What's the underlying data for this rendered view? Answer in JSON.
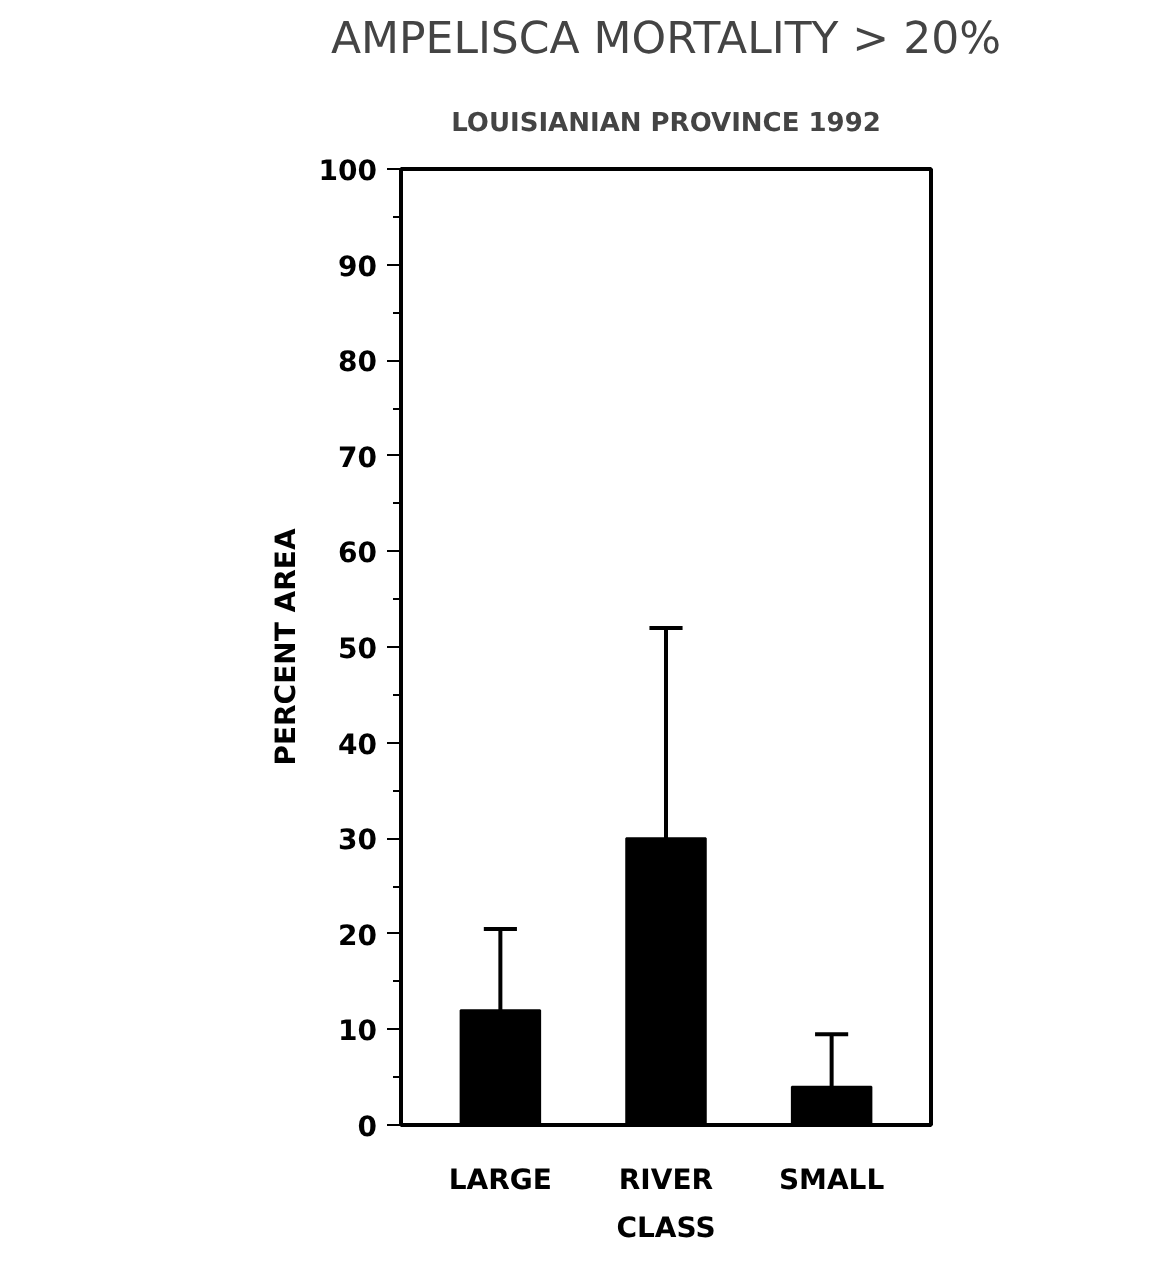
{
  "chart_data": {
    "type": "bar",
    "title": "AMPELISCA MORTALITY > 20%",
    "subtitle": "LOUISIANIAN PROVINCE 1992",
    "xlabel": "CLASS",
    "ylabel": "PERCENT AREA",
    "categories": [
      "LARGE",
      "RIVER",
      "SMALL"
    ],
    "values": [
      12,
      30,
      4
    ],
    "errors": [
      [
        12,
        20.5
      ],
      [
        30,
        52
      ],
      [
        4,
        9.5
      ]
    ],
    "color": "#000000",
    "ylim": [
      0,
      100
    ],
    "yticks": [
      0,
      10,
      20,
      30,
      40,
      50,
      60,
      70,
      80,
      90,
      100
    ],
    "grid": false
  }
}
